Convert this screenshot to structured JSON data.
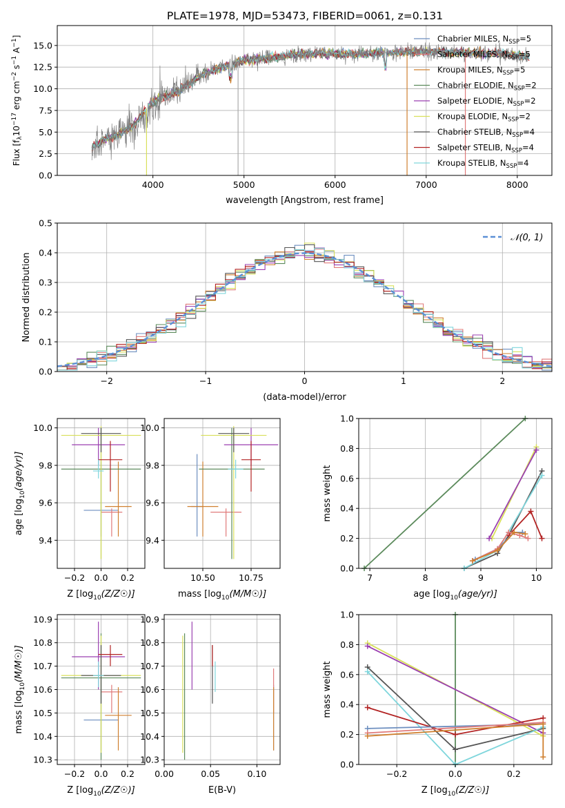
{
  "figure_title": "PLATE=1978, MJD=53473, FIBERID=0061, z=0.131",
  "legend_spectrum": [
    {
      "label": "Chabrier MILES, N",
      "sub": "SSP",
      "tail": "=5",
      "color": "#6c8ebf"
    },
    {
      "label": "Salpeter MILES, N",
      "sub": "SSP",
      "tail": "=5",
      "color": "#e07a7a"
    },
    {
      "label": "Kroupa MILES, N",
      "sub": "SSP",
      "tail": "=5",
      "color": "#cf7f2e"
    },
    {
      "label": "Chabrier ELODIE, N",
      "sub": "SSP",
      "tail": "=2",
      "color": "#5b8a5b"
    },
    {
      "label": "Salpeter ELODIE, N",
      "sub": "SSP",
      "tail": "=2",
      "color": "#9a3fb0"
    },
    {
      "label": "Kroupa ELODIE, N",
      "sub": "SSP",
      "tail": "=2",
      "color": "#d8e05a"
    },
    {
      "label": "Chabrier STELIB, N",
      "sub": "SSP",
      "tail": "=4",
      "color": "#555555"
    },
    {
      "label": "Salpeter STELIB, N",
      "sub": "SSP",
      "tail": "=4",
      "color": "#b22222"
    },
    {
      "label": "Kroupa STELIB, N",
      "sub": "SSP",
      "tail": "=4",
      "color": "#7fd6dc"
    }
  ],
  "legend_hist": {
    "label": "𝒩(0, 1)",
    "color": "#5b8fd6"
  },
  "chart_data": [
    {
      "id": "spectrum",
      "type": "line",
      "title": "PLATE=1978, MJD=53473, FIBERID=0061, z=0.131",
      "xlabel": "wavelength [Angstrom, rest frame]",
      "ylabel_parts": [
        "Flux [f",
        "λ",
        "10",
        "−17",
        " erg cm",
        "−2",
        " s",
        "−1",
        " A",
        "−1",
        "]"
      ],
      "xlim": [
        2950,
        8380
      ],
      "ylim": [
        0,
        17.3
      ],
      "xticks": [
        4000,
        5000,
        6000,
        7000,
        8000
      ],
      "yticks": [
        0.0,
        2.5,
        5.0,
        7.5,
        10.0,
        12.5,
        15.0
      ],
      "ytick_labels": [
        "0.0",
        "2.5",
        "5.0",
        "7.5",
        "10.0",
        "12.5",
        "15.0"
      ],
      "continuum": [
        [
          3330,
          3.2
        ],
        [
          3450,
          4.1
        ],
        [
          3600,
          4.6
        ],
        [
          3800,
          5.9
        ],
        [
          3950,
          8.0
        ],
        [
          4100,
          9.0
        ],
        [
          4300,
          9.8
        ],
        [
          4500,
          11.4
        ],
        [
          4700,
          12.3
        ],
        [
          5000,
          13.3
        ],
        [
          5300,
          13.6
        ],
        [
          5600,
          14.0
        ],
        [
          6000,
          14.1
        ],
        [
          6300,
          14.0
        ],
        [
          6600,
          14.2
        ],
        [
          7000,
          14.3
        ],
        [
          7400,
          14.2
        ],
        [
          7800,
          14.1
        ],
        [
          8130,
          13.7
        ]
      ],
      "model_start": [
        3330,
        3330,
        3330,
        3330,
        3330,
        3330,
        3330,
        3330,
        3330
      ]
    },
    {
      "id": "residual_hist",
      "type": "line",
      "xlabel": "(data-model)/error",
      "ylabel": "Normed distribution",
      "xlim": [
        -2.5,
        2.5
      ],
      "ylim": [
        0,
        0.5
      ],
      "xticks": [
        -2,
        -1,
        0,
        1,
        2
      ],
      "xtick_labels": [
        "−2",
        "−1",
        "0",
        "1",
        "2"
      ],
      "yticks": [
        0.0,
        0.1,
        0.2,
        0.3,
        0.4,
        0.5
      ],
      "ytick_labels": [
        "0.0",
        "0.1",
        "0.2",
        "0.3",
        "0.4",
        "0.5"
      ],
      "bin_width": 0.1,
      "series": [
        {
          "name": "𝒩(0, 1)",
          "mu": 0,
          "sigma": 1
        }
      ]
    },
    {
      "id": "age_vs_Z",
      "type": "scatter",
      "xlabel": "Z [log10(Z/Z☉)]",
      "ylabel": "age  [log10(age/yr)]",
      "xlim": [
        -0.33,
        0.33
      ],
      "ylim": [
        9.25,
        10.05
      ],
      "xticks": [
        -0.2,
        0.0,
        0.2
      ],
      "xtick_labels": [
        "−0.2",
        "0.0",
        "0.2"
      ],
      "yticks": [
        9.4,
        9.6,
        9.8,
        10.0
      ],
      "ytick_labels": [
        "9.4",
        "9.6",
        "9.8",
        "10.0"
      ],
      "points": [
        {
          "x": 0.0,
          "xerr": 0.13,
          "y": 9.56,
          "yerr": [
            0.14,
            0.26
          ],
          "c": "#6c8ebf"
        },
        {
          "x": 0.08,
          "xerr": 0.08,
          "y": 9.55,
          "yerr": [
            0.13,
            0.02
          ],
          "c": "#e07a7a"
        },
        {
          "x": 0.13,
          "xerr": 0.1,
          "y": 9.58,
          "yerr": [
            0.16,
            0.24
          ],
          "c": "#cf7f2e"
        },
        {
          "x": 0.0,
          "xerr": 0.3,
          "y": 9.78,
          "yerr": [
            0.48,
            0.22
          ],
          "c": "#5b8a5b"
        },
        {
          "x": -0.02,
          "xerr": 0.2,
          "y": 9.91,
          "yerr": [
            0.11,
            0.09
          ],
          "c": "#9a3fb0"
        },
        {
          "x": 0.0,
          "xerr": 0.3,
          "y": 9.96,
          "yerr": [
            0.66,
            0.05
          ],
          "c": "#d8e05a"
        },
        {
          "x": 0.0,
          "xerr": 0.15,
          "y": 9.97,
          "yerr": [
            0.1,
            0.03
          ],
          "c": "#555555"
        },
        {
          "x": 0.07,
          "xerr": 0.09,
          "y": 9.83,
          "yerr": [
            0.17,
            0.1
          ],
          "c": "#b22222"
        },
        {
          "x": -0.02,
          "xerr": 0.04,
          "y": 9.77,
          "yerr": [
            0.04,
            0.06
          ],
          "c": "#7fd6dc"
        }
      ]
    },
    {
      "id": "age_vs_mass",
      "type": "scatter",
      "xlabel": "mass [log10(M/M☉)]",
      "ylabel": "",
      "xlim": [
        10.3,
        10.9
      ],
      "ylim": [
        9.25,
        10.05
      ],
      "xticks": [
        10.5,
        10.75
      ],
      "xtick_labels": [
        "10.50",
        "10.75"
      ],
      "yticks": [
        9.4,
        9.6,
        9.8,
        10.0
      ],
      "ytick_labels": [
        "9.4",
        "9.6",
        "9.8",
        "10.0"
      ],
      "points": [
        {
          "x": 10.47,
          "xerr": 0.03,
          "y": 9.58,
          "yerr": [
            0.16,
            0.28
          ],
          "c": "#6c8ebf"
        },
        {
          "x": 10.62,
          "xerr": 0.08,
          "y": 9.55,
          "yerr": [
            0.13,
            0.02
          ],
          "c": "#e07a7a"
        },
        {
          "x": 10.5,
          "xerr": 0.08,
          "y": 9.58,
          "yerr": [
            0.16,
            0.24
          ],
          "c": "#cf7f2e"
        },
        {
          "x": 10.65,
          "xerr": 0.17,
          "y": 9.78,
          "yerr": [
            0.48,
            0.22
          ],
          "c": "#5b8a5b"
        },
        {
          "x": 10.75,
          "xerr": 0.14,
          "y": 9.91,
          "yerr": [
            0.11,
            0.09
          ],
          "c": "#9a3fb0"
        },
        {
          "x": 10.66,
          "xerr": 0.17,
          "y": 9.96,
          "yerr": [
            0.66,
            0.05
          ],
          "c": "#d8e05a"
        },
        {
          "x": 10.66,
          "xerr": 0.08,
          "y": 9.97,
          "yerr": [
            0.1,
            0.03
          ],
          "c": "#555555"
        },
        {
          "x": 10.75,
          "xerr": 0.05,
          "y": 9.83,
          "yerr": [
            0.17,
            0.1
          ],
          "c": "#b22222"
        },
        {
          "x": 10.67,
          "xerr": 0.04,
          "y": 9.78,
          "yerr": [
            0.05,
            0.05
          ],
          "c": "#7fd6dc"
        }
      ]
    },
    {
      "id": "massweight_vs_age",
      "type": "line",
      "xlabel": "age  [log10(age/yr)]",
      "ylabel": "mass weight",
      "xlim": [
        6.8,
        10.28
      ],
      "ylim": [
        0,
        1.0
      ],
      "xticks": [
        7,
        8,
        9,
        10
      ],
      "xtick_labels": [
        "7",
        "8",
        "9",
        "10"
      ],
      "yticks": [
        0.0,
        0.2,
        0.4,
        0.6,
        0.8,
        1.0
      ],
      "ytick_labels": [
        "0.0",
        "0.2",
        "0.4",
        "0.6",
        "0.8",
        "1.0"
      ],
      "series": [
        {
          "c": "#5b8a5b",
          "pts": [
            [
              6.9,
              0.0
            ],
            [
              9.8,
              1.0
            ]
          ]
        },
        {
          "c": "#d8e05a",
          "pts": [
            [
              9.2,
              0.2
            ],
            [
              10.0,
              0.81
            ]
          ]
        },
        {
          "c": "#9a3fb0",
          "pts": [
            [
              9.15,
              0.2
            ],
            [
              10.0,
              0.79
            ]
          ]
        },
        {
          "c": "#555555",
          "pts": [
            [
              8.7,
              0.0
            ],
            [
              9.3,
              0.1
            ],
            [
              9.5,
              0.22
            ],
            [
              10.1,
              0.65
            ]
          ]
        },
        {
          "c": "#7fd6dc",
          "pts": [
            [
              8.7,
              0.0
            ],
            [
              9.3,
              0.12
            ],
            [
              10.1,
              0.62
            ]
          ]
        },
        {
          "c": "#b22222",
          "pts": [
            [
              9.5,
              0.22
            ],
            [
              9.9,
              0.38
            ],
            [
              10.1,
              0.2
            ]
          ]
        },
        {
          "c": "#6c8ebf",
          "pts": [
            [
              8.9,
              0.06
            ],
            [
              9.3,
              0.13
            ],
            [
              9.6,
              0.24
            ],
            [
              9.75,
              0.24
            ]
          ]
        },
        {
          "c": "#e07a7a",
          "pts": [
            [
              8.85,
              0.05
            ],
            [
              9.3,
              0.13
            ],
            [
              9.5,
              0.24
            ],
            [
              9.7,
              0.22
            ],
            [
              9.85,
              0.2
            ]
          ]
        },
        {
          "c": "#cf7f2e",
          "pts": [
            [
              8.85,
              0.05
            ],
            [
              9.3,
              0.12
            ],
            [
              9.6,
              0.24
            ],
            [
              9.8,
              0.23
            ]
          ]
        }
      ]
    },
    {
      "id": "mass_vs_Z",
      "type": "scatter",
      "xlabel": "Z [log10(Z/Z☉)]",
      "ylabel": "mass [log10(M/M☉)]",
      "xlim": [
        -0.33,
        0.33
      ],
      "ylim": [
        10.28,
        10.92
      ],
      "xticks": [
        -0.2,
        0.0,
        0.2
      ],
      "xtick_labels": [
        "−0.2",
        "0.0",
        "0.2"
      ],
      "yticks": [
        10.3,
        10.4,
        10.5,
        10.6,
        10.7,
        10.8,
        10.9
      ],
      "ytick_labels": [
        "10.3",
        "10.4",
        "10.5",
        "10.6",
        "10.7",
        "10.8",
        "10.9"
      ],
      "points": [
        {
          "x": 0.0,
          "xerr": 0.13,
          "y": 10.47,
          "yerr": [
            0.13,
            0.18
          ],
          "c": "#6c8ebf"
        },
        {
          "x": 0.08,
          "xerr": 0.08,
          "y": 10.59,
          "yerr": [
            0.09,
            0.03
          ],
          "c": "#e07a7a"
        },
        {
          "x": 0.13,
          "xerr": 0.1,
          "y": 10.49,
          "yerr": [
            0.15,
            0.12
          ],
          "c": "#cf7f2e"
        },
        {
          "x": 0.0,
          "xerr": 0.3,
          "y": 10.65,
          "yerr": [
            0.35,
            0.19
          ],
          "c": "#5b8a5b"
        },
        {
          "x": -0.02,
          "xerr": 0.2,
          "y": 10.74,
          "yerr": [
            0.14,
            0.15
          ],
          "c": "#9a3fb0"
        },
        {
          "x": 0.0,
          "xerr": 0.3,
          "y": 10.66,
          "yerr": [
            0.33,
            0.17
          ],
          "c": "#d8e05a"
        },
        {
          "x": 0.0,
          "xerr": 0.15,
          "y": 10.66,
          "yerr": [
            0.12,
            0.13
          ],
          "c": "#555555"
        },
        {
          "x": 0.07,
          "xerr": 0.09,
          "y": 10.75,
          "yerr": [
            0.05,
            0.04
          ],
          "c": "#b22222"
        },
        {
          "x": -0.02,
          "xerr": 0.04,
          "y": 10.66,
          "yerr": [
            0.05,
            0.06
          ],
          "c": "#7fd6dc"
        }
      ]
    },
    {
      "id": "mass_vs_EBV",
      "type": "scatter",
      "xlabel": "E(B-V)",
      "ylabel": "",
      "xlim": [
        0.0,
        0.125
      ],
      "ylim": [
        10.28,
        10.92
      ],
      "xticks": [
        0.0,
        0.05,
        0.1
      ],
      "xtick_labels": [
        "0.00",
        "0.05",
        "0.10"
      ],
      "yticks": [
        10.3,
        10.4,
        10.5,
        10.6,
        10.7,
        10.8,
        10.9
      ],
      "ytick_labels": [
        "10.3",
        "10.4",
        "10.5",
        "10.6",
        "10.7",
        "10.8",
        "10.9"
      ],
      "points": [
        {
          "x": 0.118,
          "xerr": 0,
          "y": 10.47,
          "yerr": [
            0.13,
            0.15
          ],
          "c": "#6c8ebf"
        },
        {
          "x": 0.118,
          "xerr": 0,
          "y": 10.59,
          "yerr": [
            0.09,
            0.1
          ],
          "c": "#e07a7a"
        },
        {
          "x": 0.118,
          "xerr": 0,
          "y": 10.49,
          "yerr": [
            0.15,
            0.12
          ],
          "c": "#cf7f2e"
        },
        {
          "x": 0.022,
          "xerr": 0,
          "y": 10.65,
          "yerr": [
            0.35,
            0.19
          ],
          "c": "#5b8a5b"
        },
        {
          "x": 0.03,
          "xerr": 0,
          "y": 10.74,
          "yerr": [
            0.14,
            0.15
          ],
          "c": "#9a3fb0"
        },
        {
          "x": 0.02,
          "xerr": 0,
          "y": 10.66,
          "yerr": [
            0.33,
            0.17
          ],
          "c": "#d8e05a"
        },
        {
          "x": 0.052,
          "xerr": 0,
          "y": 10.66,
          "yerr": [
            0.12,
            0.13
          ],
          "c": "#555555"
        },
        {
          "x": 0.052,
          "xerr": 0,
          "y": 10.75,
          "yerr": [
            0.05,
            0.04
          ],
          "c": "#b22222"
        },
        {
          "x": 0.055,
          "xerr": 0,
          "y": 10.66,
          "yerr": [
            0.07,
            0.06
          ],
          "c": "#7fd6dc"
        }
      ]
    },
    {
      "id": "massweight_vs_Z",
      "type": "line",
      "xlabel": "Z [log10(Z/Z☉)]",
      "ylabel": "mass weight",
      "xlim": [
        -0.33,
        0.33
      ],
      "ylim": [
        0,
        1.0
      ],
      "xticks": [
        -0.2,
        0.0,
        0.2
      ],
      "xtick_labels": [
        "−0.2",
        "0.0",
        "0.2"
      ],
      "yticks": [
        0.0,
        0.2,
        0.4,
        0.6,
        0.8,
        1.0
      ],
      "ytick_labels": [
        "0.0",
        "0.2",
        "0.4",
        "0.6",
        "0.8",
        "1.0"
      ],
      "series": [
        {
          "c": "#5b8a5b",
          "pts": [
            [
              0.0,
              0.0
            ],
            [
              0.0,
              1.0
            ]
          ]
        },
        {
          "c": "#d8e05a",
          "pts": [
            [
              -0.3,
              0.81
            ],
            [
              0.3,
              0.19
            ]
          ]
        },
        {
          "c": "#9a3fb0",
          "pts": [
            [
              -0.3,
              0.79
            ],
            [
              0.3,
              0.21
            ]
          ]
        },
        {
          "c": "#555555",
          "pts": [
            [
              -0.3,
              0.65
            ],
            [
              0.0,
              0.1
            ],
            [
              0.3,
              0.24
            ]
          ]
        },
        {
          "c": "#7fd6dc",
          "pts": [
            [
              -0.3,
              0.62
            ],
            [
              0.0,
              0.0
            ],
            [
              0.3,
              0.25
            ]
          ]
        },
        {
          "c": "#b22222",
          "pts": [
            [
              -0.3,
              0.38
            ],
            [
              0.0,
              0.2
            ],
            [
              0.3,
              0.31
            ]
          ]
        },
        {
          "c": "#6c8ebf",
          "pts": [
            [
              -0.3,
              0.24
            ],
            [
              0.3,
              0.27
            ]
          ]
        },
        {
          "c": "#e07a7a",
          "pts": [
            [
              -0.3,
              0.21
            ],
            [
              0.3,
              0.28
            ]
          ]
        },
        {
          "c": "#cf7f2e",
          "pts": [
            [
              -0.3,
              0.19
            ],
            [
              0.3,
              0.27
            ],
            [
              0.3,
              0.05
            ]
          ]
        }
      ]
    }
  ]
}
